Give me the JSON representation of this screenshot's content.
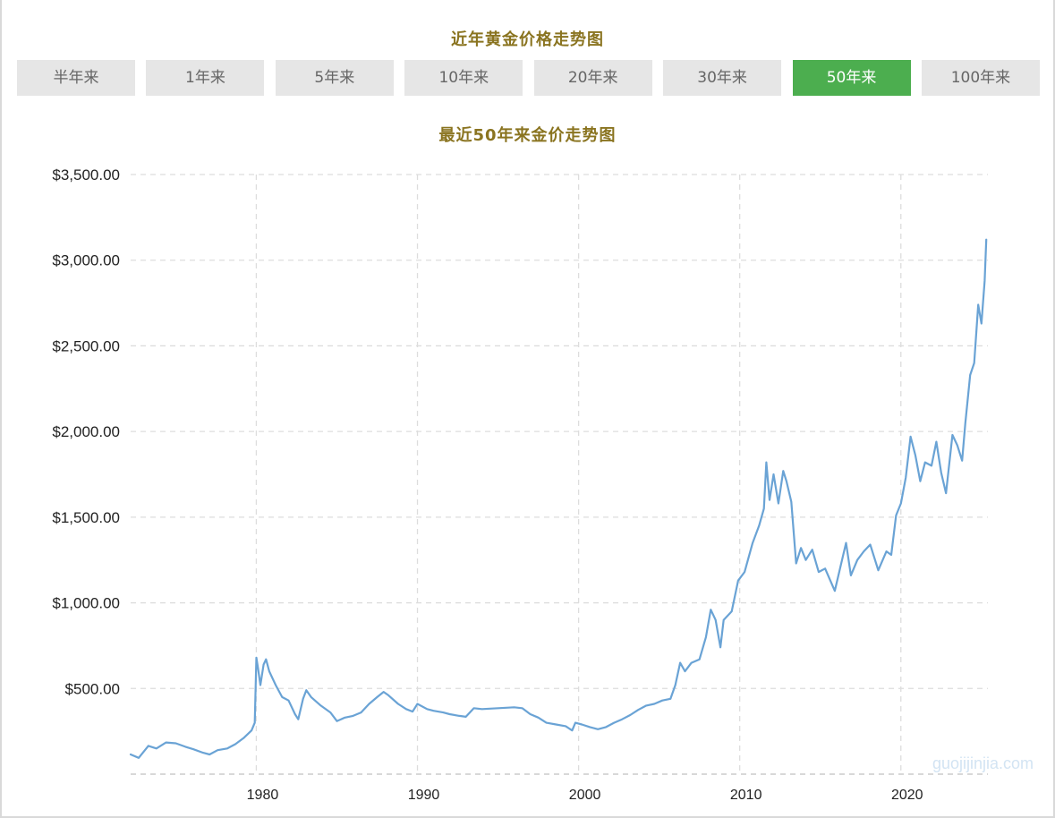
{
  "page_title": "近年黄金价格走势图",
  "tabs": [
    {
      "label": "半年来",
      "active": false
    },
    {
      "label": "1年来",
      "active": false
    },
    {
      "label": "5年来",
      "active": false
    },
    {
      "label": "10年来",
      "active": false
    },
    {
      "label": "20年来",
      "active": false
    },
    {
      "label": "30年来",
      "active": false
    },
    {
      "label": "50年来",
      "active": true
    },
    {
      "label": "100年来",
      "active": false
    }
  ],
  "colors": {
    "accent": "#4cae4f",
    "title": "#8a7420",
    "line": "#6aa3d5",
    "grid": "#dddddd"
  },
  "watermark": "guojijinjia.com",
  "chart_data": {
    "type": "line",
    "title": "最近50年来金价走势图",
    "xlabel": "",
    "ylabel": "",
    "xlim": [
      1972.2,
      2025.4
    ],
    "ylim": [
      0,
      3500
    ],
    "y_ticks": [
      500,
      1000,
      1500,
      2000,
      2500,
      3000,
      3500
    ],
    "y_tick_labels": [
      "$500.00",
      "$1,000.00",
      "$1,500.00",
      "$2,000.00",
      "$2,500.00",
      "$3,000.00",
      "$3,500.00"
    ],
    "x_ticks": [
      1980,
      1990,
      2000,
      2010,
      2020
    ],
    "x_tick_labels": [
      "1980",
      "1990",
      "2000",
      "2010",
      "2020"
    ],
    "grid": true,
    "legend": "none",
    "series": [
      {
        "values": [
          [
            1972.2,
            115
          ],
          [
            1972.7,
            95
          ],
          [
            1973.3,
            165
          ],
          [
            1973.8,
            150
          ],
          [
            1974.4,
            185
          ],
          [
            1975.0,
            180
          ],
          [
            1975.6,
            160
          ],
          [
            1976.1,
            145
          ],
          [
            1976.7,
            125
          ],
          [
            1977.1,
            115
          ],
          [
            1977.6,
            140
          ],
          [
            1978.2,
            150
          ],
          [
            1978.7,
            175
          ],
          [
            1979.2,
            210
          ],
          [
            1979.7,
            255
          ],
          [
            1979.9,
            300
          ],
          [
            1980.0,
            680
          ],
          [
            1980.1,
            620
          ],
          [
            1980.25,
            520
          ],
          [
            1980.45,
            640
          ],
          [
            1980.6,
            670
          ],
          [
            1980.8,
            600
          ],
          [
            1981.2,
            520
          ],
          [
            1981.6,
            450
          ],
          [
            1982.0,
            430
          ],
          [
            1982.4,
            350
          ],
          [
            1982.6,
            320
          ],
          [
            1982.9,
            440
          ],
          [
            1983.1,
            490
          ],
          [
            1983.4,
            450
          ],
          [
            1984.0,
            400
          ],
          [
            1984.6,
            360
          ],
          [
            1985.0,
            310
          ],
          [
            1985.5,
            330
          ],
          [
            1986.0,
            340
          ],
          [
            1986.5,
            360
          ],
          [
            1987.0,
            410
          ],
          [
            1987.5,
            450
          ],
          [
            1987.9,
            480
          ],
          [
            1988.2,
            460
          ],
          [
            1988.8,
            410
          ],
          [
            1989.3,
            380
          ],
          [
            1989.7,
            365
          ],
          [
            1990.0,
            410
          ],
          [
            1990.6,
            380
          ],
          [
            1991.0,
            370
          ],
          [
            1991.6,
            360
          ],
          [
            1992.0,
            350
          ],
          [
            1992.6,
            340
          ],
          [
            1993.0,
            335
          ],
          [
            1993.5,
            385
          ],
          [
            1994.0,
            380
          ],
          [
            1995.0,
            385
          ],
          [
            1996.0,
            390
          ],
          [
            1996.5,
            385
          ],
          [
            1997.0,
            350
          ],
          [
            1997.5,
            330
          ],
          [
            1998.0,
            300
          ],
          [
            1998.6,
            290
          ],
          [
            1999.2,
            280
          ],
          [
            1999.6,
            255
          ],
          [
            1999.8,
            300
          ],
          [
            2000.2,
            290
          ],
          [
            2000.7,
            275
          ],
          [
            2001.2,
            262
          ],
          [
            2001.7,
            275
          ],
          [
            2002.2,
            300
          ],
          [
            2002.7,
            320
          ],
          [
            2003.2,
            345
          ],
          [
            2003.7,
            375
          ],
          [
            2004.2,
            400
          ],
          [
            2004.7,
            410
          ],
          [
            2005.2,
            430
          ],
          [
            2005.7,
            440
          ],
          [
            2006.0,
            520
          ],
          [
            2006.3,
            650
          ],
          [
            2006.6,
            600
          ],
          [
            2007.0,
            650
          ],
          [
            2007.5,
            670
          ],
          [
            2007.9,
            800
          ],
          [
            2008.2,
            960
          ],
          [
            2008.5,
            900
          ],
          [
            2008.8,
            740
          ],
          [
            2009.0,
            900
          ],
          [
            2009.5,
            950
          ],
          [
            2009.9,
            1130
          ],
          [
            2010.3,
            1180
          ],
          [
            2010.8,
            1350
          ],
          [
            2011.2,
            1450
          ],
          [
            2011.5,
            1550
          ],
          [
            2011.65,
            1820
          ],
          [
            2011.85,
            1600
          ],
          [
            2012.1,
            1750
          ],
          [
            2012.4,
            1580
          ],
          [
            2012.7,
            1770
          ],
          [
            2012.9,
            1710
          ],
          [
            2013.2,
            1590
          ],
          [
            2013.5,
            1230
          ],
          [
            2013.8,
            1320
          ],
          [
            2014.1,
            1250
          ],
          [
            2014.5,
            1310
          ],
          [
            2014.9,
            1180
          ],
          [
            2015.3,
            1200
          ],
          [
            2015.9,
            1070
          ],
          [
            2016.4,
            1270
          ],
          [
            2016.6,
            1350
          ],
          [
            2016.9,
            1160
          ],
          [
            2017.3,
            1250
          ],
          [
            2017.7,
            1300
          ],
          [
            2018.1,
            1340
          ],
          [
            2018.6,
            1190
          ],
          [
            2019.1,
            1300
          ],
          [
            2019.4,
            1280
          ],
          [
            2019.7,
            1510
          ],
          [
            2020.0,
            1580
          ],
          [
            2020.3,
            1730
          ],
          [
            2020.6,
            1970
          ],
          [
            2020.9,
            1860
          ],
          [
            2021.2,
            1710
          ],
          [
            2021.5,
            1820
          ],
          [
            2021.9,
            1800
          ],
          [
            2022.2,
            1940
          ],
          [
            2022.5,
            1760
          ],
          [
            2022.8,
            1640
          ],
          [
            2023.2,
            1980
          ],
          [
            2023.5,
            1920
          ],
          [
            2023.8,
            1830
          ],
          [
            2024.0,
            2050
          ],
          [
            2024.3,
            2330
          ],
          [
            2024.55,
            2400
          ],
          [
            2024.8,
            2740
          ],
          [
            2025.0,
            2630
          ],
          [
            2025.2,
            2880
          ],
          [
            2025.3,
            3120
          ]
        ]
      }
    ]
  }
}
